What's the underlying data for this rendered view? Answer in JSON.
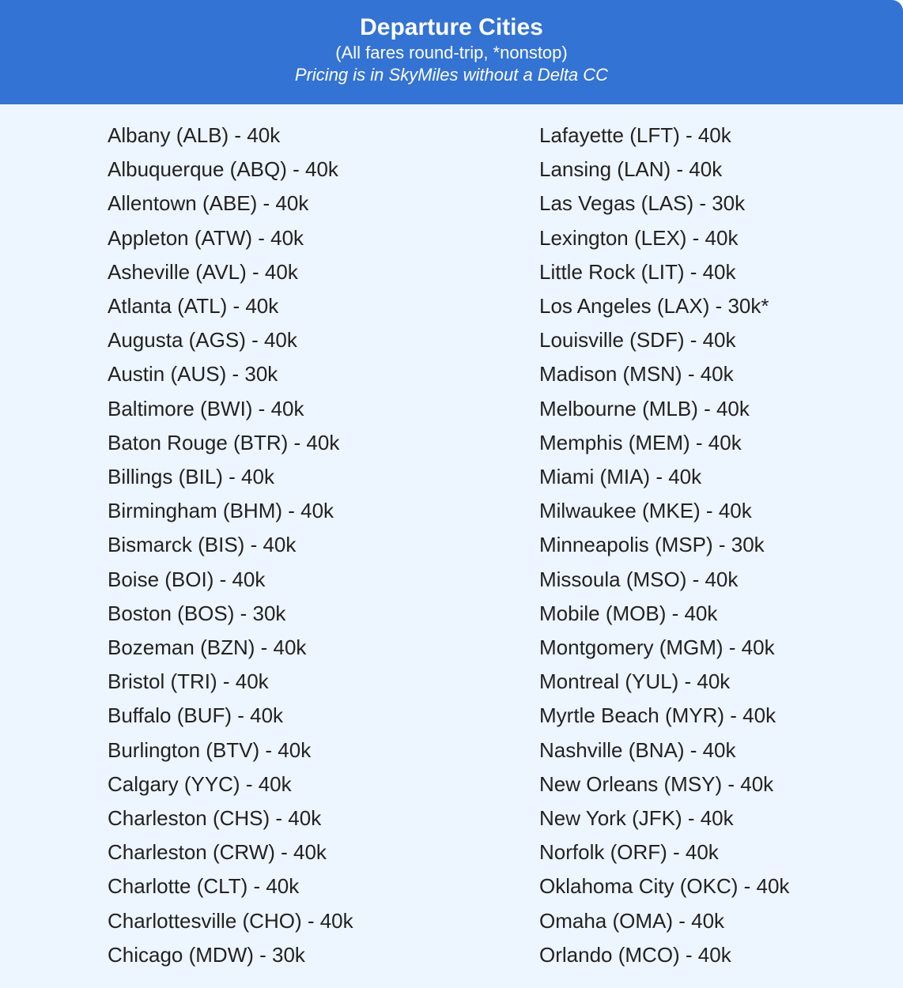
{
  "header": {
    "title": "Departure Cities",
    "subtitle": "(All fares round-trip, *nonstop)",
    "note": "Pricing is in SkyMiles without a Delta CC"
  },
  "colors": {
    "header_bg": "#3373d4",
    "body_bg": "#edf5fe"
  },
  "left": [
    "Albany (ALB) - 40k",
    "Albuquerque (ABQ) - 40k",
    "Allentown (ABE) - 40k",
    "Appleton (ATW) - 40k",
    "Asheville (AVL) - 40k",
    "Atlanta (ATL) - 40k",
    "Augusta (AGS) - 40k",
    "Austin (AUS) - 30k",
    "Baltimore (BWI) - 40k",
    "Baton Rouge (BTR) - 40k",
    "Billings (BIL) - 40k",
    "Birmingham (BHM) - 40k",
    "Bismarck (BIS) - 40k",
    "Boise (BOI) - 40k",
    "Boston (BOS) - 30k",
    "Bozeman (BZN) - 40k",
    "Bristol (TRI) - 40k",
    "Buffalo (BUF) - 40k",
    "Burlington (BTV) - 40k",
    "Calgary (YYC) - 40k",
    "Charleston (CHS) - 40k",
    "Charleston (CRW) - 40k",
    "Charlotte (CLT) - 40k",
    "Charlottesville (CHO) - 40k",
    "Chicago (MDW) - 30k"
  ],
  "right": [
    "Lafayette (LFT) - 40k",
    "Lansing (LAN) - 40k",
    "Las Vegas (LAS) - 30k",
    "Lexington (LEX) - 40k",
    "Little Rock (LIT) - 40k",
    "Los Angeles (LAX) - 30k*",
    "Louisville (SDF) - 40k",
    "Madison (MSN) - 40k",
    "Melbourne (MLB) - 40k",
    "Memphis (MEM) - 40k",
    "Miami (MIA) - 40k",
    "Milwaukee (MKE) - 40k",
    "Minneapolis (MSP) - 30k",
    "Missoula (MSO) - 40k",
    "Mobile (MOB) - 40k",
    "Montgomery (MGM) - 40k",
    "Montreal (YUL) - 40k",
    "Myrtle Beach (MYR) - 40k",
    "Nashville (BNA) - 40k",
    "New Orleans (MSY) - 40k",
    "New York (JFK) - 40k",
    "Norfolk (ORF) - 40k",
    "Oklahoma City (OKC) - 40k",
    "Omaha (OMA) - 40k",
    "Orlando (MCO) - 40k"
  ]
}
